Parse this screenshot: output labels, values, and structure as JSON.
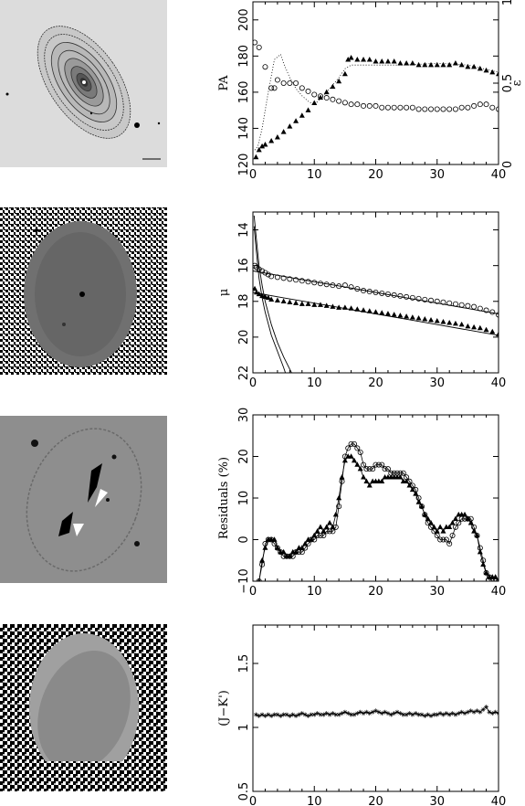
{
  "images": [
    {
      "name": "galaxy-isophote-contour-image"
    },
    {
      "name": "galaxy-noise-map-image"
    },
    {
      "name": "galaxy-residual-image"
    },
    {
      "name": "galaxy-color-map-image"
    }
  ],
  "chart_data": [
    {
      "type": "scatter",
      "ylabel": "PA",
      "y2label": "ε",
      "xlim": [
        0,
        40
      ],
      "ylim": [
        120,
        210
      ],
      "y2lim": [
        0,
        1
      ],
      "xticks": [
        "0",
        "10",
        "20",
        "30",
        "40"
      ],
      "yticks": [
        "120",
        "140",
        "160",
        "180",
        "200"
      ],
      "y2ticks": [
        "0",
        "0.5",
        "1"
      ],
      "series": [
        {
          "marker": "triangle-filled",
          "axis": "left",
          "x": [
            0.5,
            1,
            1.5,
            2,
            3,
            4,
            5,
            6,
            7,
            8,
            9,
            10,
            11,
            12,
            13,
            14,
            15,
            15.5,
            16,
            17,
            18,
            19,
            20,
            21,
            22,
            23,
            24,
            25,
            26,
            27,
            28,
            29,
            30,
            31,
            32,
            33,
            34,
            35,
            36,
            37,
            38,
            39,
            40
          ],
          "y": [
            124,
            128,
            130,
            131,
            133,
            135,
            138,
            141,
            144,
            147,
            150,
            154,
            157,
            160,
            163,
            166,
            170,
            178,
            179,
            178,
            178,
            178,
            177,
            177,
            177,
            177,
            176,
            176,
            176,
            175,
            175,
            175,
            175,
            175,
            175,
            176,
            175,
            174,
            174,
            173,
            172,
            171,
            170
          ]
        },
        {
          "marker": "circle-open",
          "axis": "right",
          "x": [
            0.3,
            1,
            2,
            3,
            3.5,
            4,
            5,
            6,
            7,
            8,
            9,
            10,
            11,
            12,
            13,
            14,
            15,
            16,
            17,
            18,
            19,
            20,
            21,
            22,
            23,
            24,
            25,
            26,
            27,
            28,
            29,
            30,
            31,
            32,
            33,
            34,
            35,
            36,
            37,
            38,
            39,
            40
          ],
          "y": [
            0.75,
            0.72,
            0.6,
            0.47,
            0.47,
            0.52,
            0.5,
            0.5,
            0.5,
            0.47,
            0.45,
            0.43,
            0.42,
            0.41,
            0.4,
            0.39,
            0.38,
            0.37,
            0.37,
            0.36,
            0.36,
            0.36,
            0.35,
            0.35,
            0.35,
            0.35,
            0.35,
            0.35,
            0.34,
            0.34,
            0.34,
            0.34,
            0.34,
            0.34,
            0.34,
            0.35,
            0.35,
            0.36,
            0.37,
            0.37,
            0.35,
            0.34
          ]
        },
        {
          "marker": "dotted-line",
          "axis": "left",
          "x": [
            0.3,
            0.8,
            1.5,
            2.5,
            3.5,
            4.5,
            5,
            6,
            7,
            8,
            9,
            10,
            12,
            14,
            15,
            16,
            18,
            20,
            25,
            30,
            35,
            40
          ],
          "y": [
            128,
            130,
            140,
            160,
            178,
            181,
            176,
            168,
            162,
            158,
            155,
            153,
            160,
            168,
            173,
            175,
            175,
            175,
            175,
            176,
            175,
            171
          ]
        }
      ]
    },
    {
      "type": "line",
      "ylabel": "μ",
      "xlim": [
        0,
        40
      ],
      "ylim": [
        22,
        13
      ],
      "xticks": [
        "0",
        "10",
        "20",
        "30",
        "40"
      ],
      "yticks": [
        "14",
        "16",
        "18",
        "20",
        "22"
      ],
      "series": [
        {
          "marker": "circle-open",
          "x": [
            0.3,
            0.6,
            1,
            1.5,
            2,
            2.5,
            3,
            4,
            5,
            6,
            7,
            8,
            9,
            10,
            11,
            12,
            13,
            14,
            15,
            16,
            17,
            18,
            19,
            20,
            21,
            22,
            23,
            24,
            25,
            26,
            27,
            28,
            29,
            30,
            31,
            32,
            33,
            34,
            35,
            36,
            37,
            38,
            39,
            40
          ],
          "y": [
            16.0,
            16.1,
            16.2,
            16.3,
            16.4,
            16.5,
            16.6,
            16.65,
            16.7,
            16.75,
            16.8,
            16.85,
            16.9,
            16.95,
            17.0,
            17.05,
            17.1,
            17.15,
            17.1,
            17.2,
            17.3,
            17.4,
            17.45,
            17.5,
            17.55,
            17.6,
            17.65,
            17.7,
            17.75,
            17.8,
            17.85,
            17.9,
            17.95,
            18.0,
            18.05,
            18.1,
            18.15,
            18.2,
            18.25,
            18.3,
            18.4,
            18.5,
            18.6,
            18.75
          ]
        },
        {
          "marker": "triangle-filled",
          "x": [
            0.3,
            0.6,
            1,
            1.5,
            2,
            2.5,
            3,
            4,
            5,
            6,
            7,
            8,
            9,
            10,
            11,
            12,
            13,
            14,
            15,
            16,
            17,
            18,
            19,
            20,
            21,
            22,
            23,
            24,
            25,
            26,
            27,
            28,
            29,
            30,
            31,
            32,
            33,
            34,
            35,
            36,
            37,
            38,
            39,
            40
          ],
          "y": [
            17.3,
            17.5,
            17.6,
            17.7,
            17.75,
            17.8,
            17.9,
            17.95,
            18.0,
            18.05,
            18.1,
            18.15,
            18.15,
            18.2,
            18.2,
            18.25,
            18.3,
            18.35,
            18.35,
            18.4,
            18.45,
            18.5,
            18.55,
            18.6,
            18.65,
            18.7,
            18.75,
            18.8,
            18.85,
            18.9,
            18.95,
            19.0,
            19.05,
            19.1,
            19.15,
            19.2,
            19.25,
            19.3,
            19.4,
            19.45,
            19.5,
            19.6,
            19.7,
            19.85
          ]
        },
        {
          "marker": "solid-line",
          "x": [
            0,
            5,
            10,
            15,
            20,
            25,
            30,
            35,
            40
          ],
          "y": [
            16.3,
            16.6,
            16.9,
            17.2,
            17.5,
            17.8,
            18.1,
            18.4,
            18.7
          ]
        },
        {
          "marker": "solid-line",
          "x": [
            0,
            5,
            10,
            15,
            20,
            25,
            30,
            35,
            40
          ],
          "y": [
            17.5,
            17.8,
            18.1,
            18.4,
            18.7,
            19.0,
            19.3,
            19.6,
            19.9
          ]
        },
        {
          "marker": "solid-line",
          "x": [
            0.2,
            0.5,
            1,
            1.5,
            2,
            3,
            4,
            5,
            6,
            6.3
          ],
          "y": [
            13.2,
            14.3,
            16.0,
            17.1,
            18.0,
            19.3,
            20.3,
            21.1,
            21.8,
            22.0
          ]
        },
        {
          "marker": "solid-line",
          "x": [
            0.2,
            0.5,
            1,
            1.5,
            2,
            3,
            4,
            5,
            5.3
          ],
          "y": [
            13.8,
            15.0,
            16.7,
            17.8,
            18.6,
            19.9,
            20.8,
            21.7,
            22.0
          ]
        }
      ]
    },
    {
      "type": "line",
      "ylabel": "Residuals (%)",
      "xlim": [
        0,
        40
      ],
      "ylim": [
        -10,
        30
      ],
      "xticks": [
        "0",
        "10",
        "20",
        "30",
        "40"
      ],
      "yticks": [
        "−10",
        "0",
        "10",
        "20",
        "30"
      ],
      "series": [
        {
          "marker": "triangle-filled",
          "x": [
            1,
            1.5,
            2,
            2.5,
            3,
            3.5,
            4,
            4.5,
            5,
            5.5,
            6,
            6.5,
            7,
            7.5,
            8,
            8.5,
            9,
            9.5,
            10,
            10.5,
            11,
            11.5,
            12,
            12.5,
            13,
            13.5,
            14,
            14.5,
            15,
            15.5,
            16,
            16.5,
            17,
            17.5,
            18,
            18.5,
            19,
            19.5,
            20,
            20.5,
            21,
            21.5,
            22,
            22.5,
            23,
            23.5,
            24,
            24.5,
            25,
            25.5,
            26,
            26.5,
            27,
            27.5,
            28,
            28.5,
            29,
            29.5,
            30,
            30.5,
            31,
            31.5,
            32,
            32.5,
            33,
            33.5,
            34,
            34.5,
            35,
            35.5,
            36,
            36.5,
            37,
            37.5,
            38,
            38.5,
            39,
            39.5,
            40
          ],
          "y": [
            -10,
            -5,
            -2,
            0,
            0,
            0,
            -2,
            -3,
            -3,
            -4,
            -4,
            -3,
            -3,
            -2,
            -2,
            -1,
            0,
            0,
            1,
            2,
            3,
            2,
            3,
            4,
            3,
            6,
            10,
            15,
            19,
            20,
            20,
            19,
            18,
            17,
            15,
            14,
            13,
            14,
            14,
            14,
            14,
            15,
            15,
            15,
            15,
            15,
            15,
            14,
            14,
            13,
            12,
            11,
            9,
            8,
            6,
            5,
            4,
            3,
            2,
            3,
            2,
            3,
            3,
            4,
            5,
            6,
            6,
            6,
            5,
            4,
            2,
            1,
            -3,
            -6,
            -8,
            -9,
            -9,
            -9,
            -10
          ]
        },
        {
          "marker": "circle-open",
          "x": [
            1,
            1.5,
            2,
            2.5,
            3,
            3.5,
            4,
            4.5,
            5,
            5.5,
            6,
            6.5,
            7,
            7.5,
            8,
            8.5,
            9,
            9.5,
            10,
            10.5,
            11,
            11.5,
            12,
            12.5,
            13,
            13.5,
            14,
            14.5,
            15,
            15.5,
            16,
            16.5,
            17,
            17.5,
            18,
            18.5,
            19,
            19.5,
            20,
            20.5,
            21,
            21.5,
            22,
            22.5,
            23,
            23.5,
            24,
            24.5,
            25,
            25.5,
            26,
            26.5,
            27,
            27.5,
            28,
            28.5,
            29,
            29.5,
            30,
            30.5,
            31,
            31.5,
            32,
            32.5,
            33,
            33.5,
            34,
            34.5,
            35,
            35.5,
            36,
            36.5,
            37,
            37.5,
            38,
            38.5,
            39,
            39.5,
            40
          ],
          "y": [
            -10,
            -6,
            -1,
            0,
            0,
            -1,
            -2,
            -3,
            -4,
            -4,
            -4,
            -4,
            -3,
            -3,
            -3,
            -2,
            -1,
            0,
            0,
            1,
            1,
            1,
            2,
            2,
            2,
            3,
            8,
            14,
            20,
            22,
            23,
            23,
            22,
            21,
            18,
            17,
            17,
            17,
            18,
            18,
            18,
            17,
            17,
            16,
            16,
            16,
            16,
            16,
            15,
            14,
            13,
            12,
            10,
            8,
            6,
            4,
            3,
            2,
            1,
            0,
            0,
            0,
            -1,
            1,
            3,
            4,
            5,
            5,
            5,
            5,
            3,
            1,
            -2,
            -5,
            -8,
            -9,
            -10,
            -10,
            -10
          ]
        }
      ]
    },
    {
      "type": "line",
      "ylabel": "(J−K')",
      "xlim": [
        0,
        40
      ],
      "ylim": [
        0.5,
        1.8
      ],
      "xticks": [
        "0",
        "10",
        "20",
        "30",
        "40"
      ],
      "yticks": [
        "0.5",
        "1",
        "1.5"
      ],
      "series": [
        {
          "marker": "star",
          "x": [
            0.5,
            1,
            1.5,
            2,
            2.5,
            3,
            3.5,
            4,
            4.5,
            5,
            5.5,
            6,
            6.5,
            7,
            7.5,
            8,
            8.5,
            9,
            9.5,
            10,
            10.5,
            11,
            11.5,
            12,
            12.5,
            13,
            13.5,
            14,
            14.5,
            15,
            15.5,
            16,
            16.5,
            17,
            17.5,
            18,
            18.5,
            19,
            19.5,
            20,
            20.5,
            21,
            21.5,
            22,
            22.5,
            23,
            23.5,
            24,
            24.5,
            25,
            25.5,
            26,
            26.5,
            27,
            27.5,
            28,
            28.5,
            29,
            29.5,
            30,
            30.5,
            31,
            31.5,
            32,
            32.5,
            33,
            33.5,
            34,
            34.5,
            35,
            35.5,
            36,
            36.5,
            37,
            37.5,
            38,
            38.5,
            39,
            39.5,
            40
          ],
          "y": [
            1.1,
            1.09,
            1.1,
            1.09,
            1.1,
            1.09,
            1.1,
            1.1,
            1.09,
            1.1,
            1.1,
            1.09,
            1.1,
            1.09,
            1.1,
            1.11,
            1.1,
            1.09,
            1.1,
            1.1,
            1.11,
            1.1,
            1.1,
            1.11,
            1.1,
            1.11,
            1.1,
            1.1,
            1.11,
            1.12,
            1.11,
            1.1,
            1.1,
            1.11,
            1.12,
            1.11,
            1.12,
            1.11,
            1.12,
            1.13,
            1.12,
            1.11,
            1.12,
            1.11,
            1.1,
            1.11,
            1.12,
            1.11,
            1.1,
            1.1,
            1.11,
            1.1,
            1.11,
            1.1,
            1.1,
            1.09,
            1.1,
            1.09,
            1.1,
            1.1,
            1.11,
            1.1,
            1.11,
            1.1,
            1.11,
            1.1,
            1.11,
            1.12,
            1.11,
            1.12,
            1.13,
            1.12,
            1.13,
            1.12,
            1.14,
            1.16,
            1.12,
            1.11,
            1.12,
            1.11
          ]
        }
      ]
    }
  ]
}
